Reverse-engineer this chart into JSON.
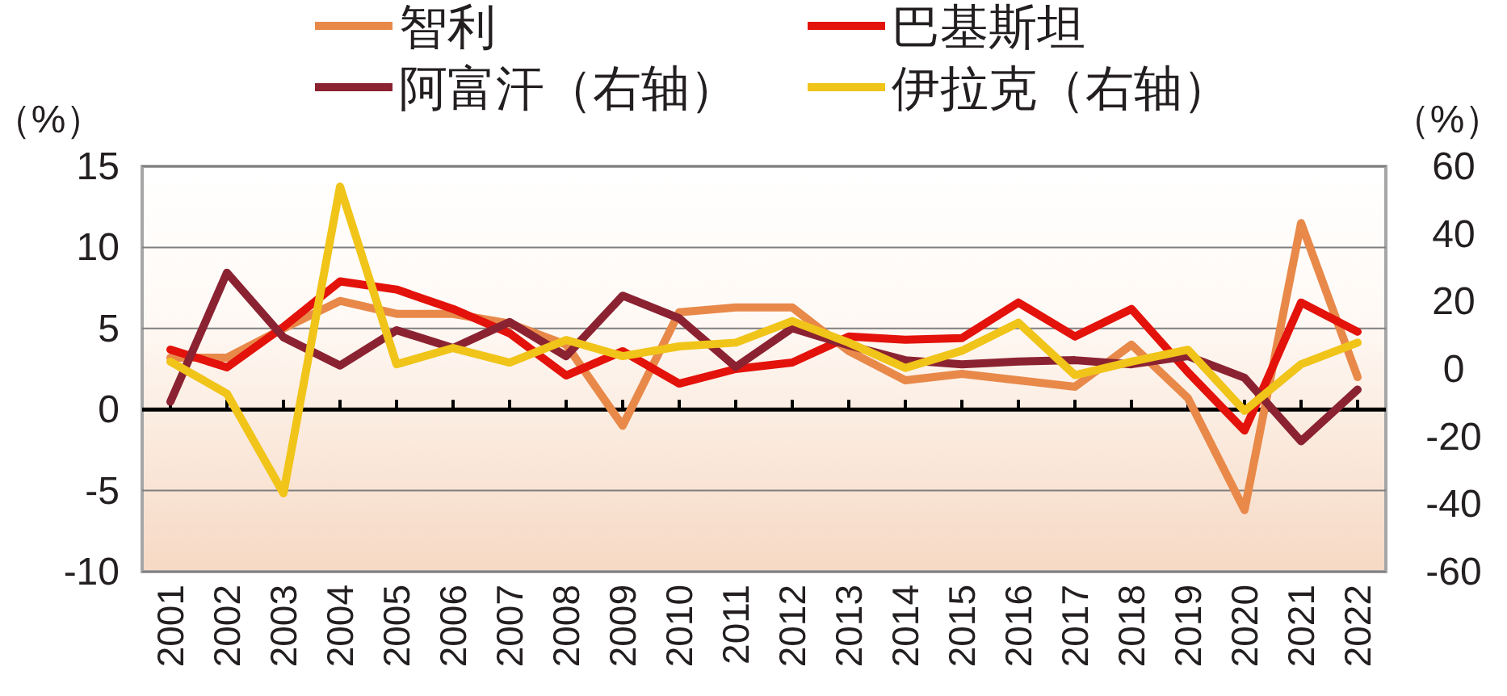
{
  "chart_data": {
    "type": "line",
    "ylabel": "（%）",
    "y2label": "（%）",
    "categories": [
      "2001",
      "2002",
      "2003",
      "2004",
      "2005",
      "2006",
      "2007",
      "2008",
      "2009",
      "2010",
      "2011",
      "2012",
      "2013",
      "2014",
      "2015",
      "2016",
      "2017",
      "2018",
      "2019",
      "2020",
      "2021",
      "2022"
    ],
    "series": [
      {
        "name": "智利",
        "color": "#e8894a",
        "values": [
          3.2,
          3.2,
          5.0,
          6.7,
          5.9,
          5.9,
          5.3,
          4.0,
          -1.0,
          6.0,
          6.3,
          6.3,
          3.6,
          1.8,
          2.2,
          1.8,
          1.4,
          4.0,
          0.7,
          -6.2,
          11.5,
          2.0
        ]
      },
      {
        "name": "巴基斯坦",
        "color": "#e3120b",
        "values": [
          3.7,
          2.6,
          5.1,
          7.9,
          7.4,
          6.2,
          4.7,
          2.1,
          3.6,
          1.6,
          2.5,
          2.9,
          4.5,
          4.3,
          4.4,
          6.6,
          4.5,
          6.2,
          2.3,
          -1.3,
          6.6,
          4.8
        ]
      },
      {
        "name": "阿富汗（右轴）",
        "color": "#8b2232",
        "axis": "y2",
        "values": [
          -9.7,
          28.5,
          9.4,
          1.0,
          11.5,
          6.2,
          13.9,
          3.8,
          21.7,
          15.0,
          0.6,
          12.1,
          7.0,
          2.6,
          1.4,
          2.2,
          2.6,
          1.4,
          3.8,
          -2.6,
          -21.4,
          -6.1
        ]
      },
      {
        "name": "伊拉克（右轴）",
        "color": "#f0c419",
        "axis": "y2",
        "values": [
          2.2,
          -7.3,
          -36.8,
          54,
          1.4,
          6.2,
          1.9,
          8.6,
          3.8,
          6.7,
          7.8,
          14.2,
          7.8,
          0.3,
          5.4,
          13.7,
          -1.8,
          2.2,
          5.7,
          -12.4,
          1.4,
          7.8
        ]
      }
    ],
    "ylim": [
      -10,
      15
    ],
    "yticks": [
      -10,
      -5,
      0,
      5,
      10,
      15
    ],
    "y2lim": [
      -60,
      60
    ],
    "y2ticks": [
      -60,
      -40,
      -20,
      0,
      20,
      40,
      60
    ],
    "grid": "y",
    "legend": "top",
    "marker": "none",
    "line_style": "solid"
  }
}
